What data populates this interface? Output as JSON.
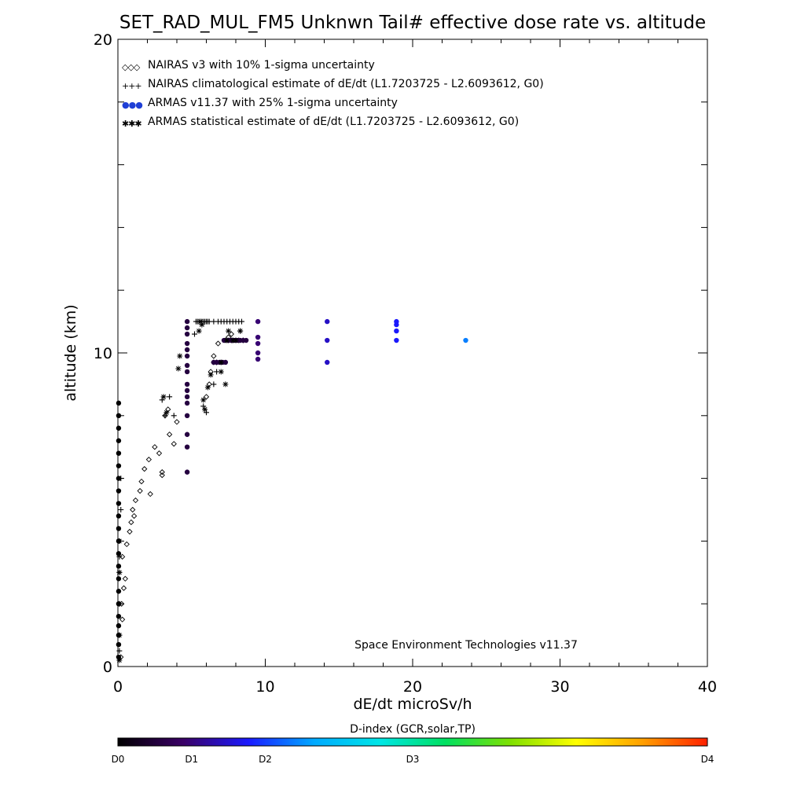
{
  "chart_data": {
    "type": "scatter",
    "title": "SET_RAD_MUL_FM5 Unknwn Tail#  effective dose rate vs. altitude",
    "xlabel": "dE/dt microSv/h",
    "ylabel": "altitude (km)",
    "xlim": [
      0,
      40
    ],
    "ylim": [
      0,
      20
    ],
    "x_ticks": [
      {
        "value": 0,
        "label": "0"
      },
      {
        "value": 10,
        "label": "10"
      },
      {
        "value": 20,
        "label": "20"
      },
      {
        "value": 30,
        "label": "30"
      },
      {
        "value": 40,
        "label": "40"
      }
    ],
    "y_ticks": [
      {
        "value": 0,
        "label": "0"
      },
      {
        "value": 10,
        "label": "10"
      },
      {
        "value": 20,
        "label": "20"
      }
    ],
    "y_minor_ticks": [
      2,
      4,
      6,
      8,
      12,
      14,
      16,
      18
    ],
    "grid": false,
    "legend_position": "top-left",
    "legend": [
      {
        "symbol": "◇◇◇",
        "color": "#000000",
        "label": "NAIRAS v3 with 10% 1-sigma uncertainty"
      },
      {
        "symbol": "+++",
        "color": "#000000",
        "label": "NAIRAS climatological estimate of dE/dt (L1.7203725 - L2.6093612, G0)"
      },
      {
        "symbol": "●●●",
        "color": "#1f3fd6",
        "label": "ARMAS v11.37 with 25% 1-sigma uncertainty"
      },
      {
        "symbol": "✱✱✱",
        "color": "#000000",
        "label": "ARMAS statistical estimate of dE/dt (L1.7203725 - L2.6093612, G0)"
      }
    ],
    "annotation": "Space Environment Technologies v11.37",
    "colorbar": {
      "title": "D-index (GCR,solar,TP)",
      "labels": [
        {
          "pos": 0,
          "text": "D0"
        },
        {
          "pos": 0.125,
          "text": "D1"
        },
        {
          "pos": 0.25,
          "text": "D2"
        },
        {
          "pos": 0.5,
          "text": "D3"
        },
        {
          "pos": 1,
          "text": "D4"
        }
      ],
      "colors": [
        "#000000",
        "#3a0066",
        "#1a1aff",
        "#00aaff",
        "#00e6e6",
        "#00e060",
        "#80e000",
        "#ffff00",
        "#ffa000",
        "#ff2000"
      ]
    },
    "series": [
      {
        "name": "NAIRAS v3 with 10% 1-sigma uncertainty",
        "marker": "diamond",
        "x": [
          0.2,
          0.3,
          0.25,
          0.4,
          0.5,
          0.3,
          0.6,
          0.8,
          0.9,
          1.0,
          1.2,
          1.1,
          1.5,
          1.6,
          1.8,
          2.2,
          2.1,
          2.5,
          2.8,
          3.0,
          3.0,
          3.5,
          3.8,
          4.0,
          3.2,
          3.4,
          6.0,
          6.2,
          6.3,
          6.5,
          6.5,
          6.8,
          7.5,
          7.3,
          7.5,
          7.7,
          7.7,
          8.0
        ],
        "y": [
          0.3,
          1.5,
          2.0,
          2.5,
          2.8,
          3.5,
          3.9,
          4.3,
          4.6,
          5.0,
          5.3,
          4.8,
          5.6,
          5.9,
          6.3,
          5.5,
          6.6,
          7.0,
          6.8,
          6.1,
          6.2,
          7.4,
          7.1,
          7.8,
          8.0,
          8.2,
          8.6,
          9.0,
          9.4,
          9.7,
          9.9,
          10.3,
          10.5,
          10.4,
          10.4,
          10.4,
          10.6,
          10.4
        ]
      },
      {
        "name": "NAIRAS climatological estimate of dE/dt (L1.7203725 - L2.6093612, G0)",
        "marker": "plus",
        "x": [
          0.1,
          0.1,
          0.1,
          0.1,
          0.1,
          0.1,
          0.2,
          0.2,
          3.0,
          3.2,
          3.5,
          3.8,
          5.2,
          5.3,
          5.4,
          5.5,
          5.6,
          5.7,
          5.8,
          5.9,
          6.0,
          6.1,
          6.2,
          6.5,
          6.8,
          7.0,
          7.2,
          7.4,
          7.6,
          7.8,
          8.0,
          8.2,
          8.4,
          5.8,
          6.0,
          6.5,
          6.7,
          6.7,
          7.8,
          8.2,
          8.5,
          8.3
        ],
        "y": [
          0.5,
          1.0,
          2.0,
          3.0,
          3.5,
          4.0,
          5.0,
          6.0,
          8.5,
          8.0,
          8.6,
          8.0,
          10.6,
          11.0,
          11.0,
          11.0,
          11.0,
          11.0,
          11.0,
          11.0,
          11.0,
          11.0,
          11.0,
          11.0,
          11.0,
          11.0,
          11.0,
          11.0,
          11.0,
          11.0,
          11.0,
          11.0,
          11.0,
          8.3,
          8.1,
          9.0,
          9.4,
          9.7,
          10.4,
          10.4,
          10.4,
          10.7
        ]
      },
      {
        "name": "ARMAS v11.37 with 25% 1-sigma uncertainty",
        "marker": "circle",
        "dindex": [
          0,
          0,
          0,
          0,
          0,
          0,
          0,
          0,
          0,
          0,
          0,
          0,
          0,
          0,
          0,
          0,
          0,
          0,
          0,
          0,
          0,
          0,
          0.07,
          0.07,
          0.07,
          0.07,
          0.07,
          0.07,
          0.07,
          0.07,
          0.07,
          0.07,
          0.07,
          0.07,
          0.07,
          0.07,
          0.07,
          0.07,
          0.07,
          0.07,
          0.07,
          0.07,
          0.07,
          0.07,
          0.07,
          0.07,
          0.07,
          0.07,
          0.07,
          0.07,
          0.07,
          0.07,
          0.07,
          0.12,
          0.12,
          0.12,
          0.12,
          0.12,
          0.18,
          0.18,
          0.18,
          0.22,
          0.22,
          0.22,
          0.22,
          0.3
        ],
        "x": [
          0.05,
          0.05,
          0.05,
          0.05,
          0.05,
          0.05,
          0.05,
          0.05,
          0.05,
          0.05,
          0.05,
          0.05,
          0.05,
          0.05,
          0.05,
          0.05,
          0.05,
          0.05,
          0.05,
          0.05,
          0.05,
          0.05,
          4.7,
          4.7,
          4.7,
          4.7,
          4.7,
          4.7,
          4.7,
          4.7,
          4.7,
          4.7,
          4.7,
          4.7,
          4.7,
          4.7,
          4.7,
          4.7,
          6.5,
          6.7,
          6.9,
          7.1,
          7.3,
          7.5,
          7.7,
          7.5,
          7.7,
          7.9,
          8.1,
          8.3,
          8.5,
          8.7,
          7.2,
          9.5,
          9.5,
          9.5,
          9.5,
          9.5,
          14.2,
          14.2,
          14.2,
          18.9,
          18.9,
          18.9,
          18.9,
          23.6
        ],
        "y": [
          0.3,
          0.7,
          1.0,
          1.3,
          1.6,
          2.0,
          2.4,
          2.8,
          3.2,
          3.6,
          4.0,
          4.4,
          4.8,
          5.2,
          5.6,
          6.0,
          6.4,
          6.8,
          7.2,
          7.6,
          8.0,
          8.4,
          6.2,
          7.0,
          7.4,
          8.0,
          8.4,
          8.6,
          8.8,
          9.0,
          9.4,
          9.6,
          9.9,
          10.1,
          10.3,
          10.6,
          10.8,
          11.0,
          9.7,
          9.7,
          9.7,
          9.7,
          9.7,
          10.4,
          10.4,
          10.4,
          10.4,
          10.4,
          10.4,
          10.4,
          10.4,
          10.4,
          10.4,
          9.8,
          10.0,
          10.3,
          10.5,
          11.0,
          9.7,
          10.4,
          11.0,
          10.4,
          10.7,
          10.9,
          11.0,
          10.4
        ]
      },
      {
        "name": "ARMAS statistical estimate of dE/dt (L1.7203725 - L2.6093612, G0)",
        "marker": "asterisk",
        "x": [
          0.1,
          0.1,
          0.1,
          0.1,
          0.1,
          3.1,
          3.3,
          4.1,
          4.2,
          5.6,
          5.8,
          5.9,
          6.1,
          6.3,
          7.0,
          7.4,
          7.8,
          8.0,
          8.3,
          5.5,
          5.7,
          7.0,
          7.3,
          7.5
        ],
        "y": [
          0.2,
          1.0,
          2.0,
          3.0,
          4.0,
          8.6,
          8.1,
          9.5,
          9.9,
          11.0,
          8.5,
          8.2,
          8.9,
          9.3,
          9.7,
          10.4,
          10.4,
          10.4,
          10.7,
          10.7,
          10.9,
          9.4,
          9.0,
          10.7
        ]
      }
    ]
  }
}
